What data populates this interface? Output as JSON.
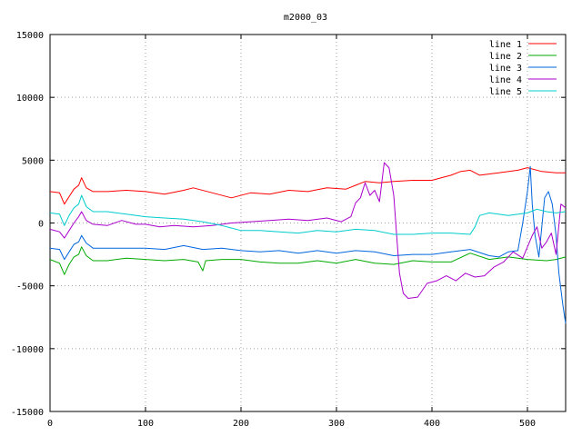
{
  "chart_data": {
    "type": "line",
    "title": "m2000_03",
    "xlabel": "",
    "ylabel": "",
    "xlim": [
      0,
      540
    ],
    "ylim": [
      -15000,
      15000
    ],
    "xticks": [
      0,
      100,
      200,
      300,
      400,
      500
    ],
    "yticks": [
      -15000,
      -10000,
      -5000,
      0,
      5000,
      10000,
      15000
    ],
    "grid": true,
    "legend_position": "top-right",
    "series": [
      {
        "name": "line 1",
        "color": "#ff0000",
        "points": [
          [
            0,
            2500
          ],
          [
            10,
            2400
          ],
          [
            15,
            1500
          ],
          [
            20,
            2100
          ],
          [
            25,
            2700
          ],
          [
            30,
            3000
          ],
          [
            33,
            3600
          ],
          [
            38,
            2800
          ],
          [
            45,
            2500
          ],
          [
            60,
            2500
          ],
          [
            80,
            2600
          ],
          [
            100,
            2500
          ],
          [
            120,
            2300
          ],
          [
            140,
            2600
          ],
          [
            150,
            2800
          ],
          [
            170,
            2400
          ],
          [
            190,
            2000
          ],
          [
            210,
            2400
          ],
          [
            230,
            2300
          ],
          [
            250,
            2600
          ],
          [
            270,
            2500
          ],
          [
            290,
            2800
          ],
          [
            310,
            2700
          ],
          [
            320,
            3000
          ],
          [
            330,
            3300
          ],
          [
            345,
            3200
          ],
          [
            360,
            3300
          ],
          [
            380,
            3400
          ],
          [
            400,
            3400
          ],
          [
            420,
            3800
          ],
          [
            430,
            4100
          ],
          [
            440,
            4200
          ],
          [
            450,
            3800
          ],
          [
            470,
            4000
          ],
          [
            490,
            4200
          ],
          [
            500,
            4400
          ],
          [
            515,
            4100
          ],
          [
            530,
            4000
          ],
          [
            540,
            4000
          ]
        ]
      },
      {
        "name": "line 2",
        "color": "#00aa00",
        "points": [
          [
            0,
            -2900
          ],
          [
            10,
            -3200
          ],
          [
            15,
            -4100
          ],
          [
            20,
            -3300
          ],
          [
            25,
            -2700
          ],
          [
            30,
            -2500
          ],
          [
            33,
            -1900
          ],
          [
            38,
            -2600
          ],
          [
            45,
            -3000
          ],
          [
            60,
            -3000
          ],
          [
            80,
            -2800
          ],
          [
            100,
            -2900
          ],
          [
            120,
            -3000
          ],
          [
            140,
            -2900
          ],
          [
            155,
            -3100
          ],
          [
            160,
            -3800
          ],
          [
            163,
            -3000
          ],
          [
            180,
            -2900
          ],
          [
            200,
            -2900
          ],
          [
            220,
            -3100
          ],
          [
            240,
            -3200
          ],
          [
            260,
            -3200
          ],
          [
            280,
            -3000
          ],
          [
            300,
            -3200
          ],
          [
            320,
            -2900
          ],
          [
            340,
            -3200
          ],
          [
            360,
            -3300
          ],
          [
            380,
            -3000
          ],
          [
            400,
            -3100
          ],
          [
            420,
            -3100
          ],
          [
            440,
            -2400
          ],
          [
            460,
            -2900
          ],
          [
            480,
            -2700
          ],
          [
            500,
            -2900
          ],
          [
            520,
            -3000
          ],
          [
            530,
            -2900
          ],
          [
            540,
            -2700
          ]
        ]
      },
      {
        "name": "line 3",
        "color": "#0066dd",
        "points": [
          [
            0,
            -2000
          ],
          [
            10,
            -2100
          ],
          [
            15,
            -2900
          ],
          [
            20,
            -2300
          ],
          [
            25,
            -1700
          ],
          [
            30,
            -1500
          ],
          [
            33,
            -1000
          ],
          [
            38,
            -1600
          ],
          [
            45,
            -2000
          ],
          [
            60,
            -2000
          ],
          [
            80,
            -2000
          ],
          [
            100,
            -2000
          ],
          [
            120,
            -2100
          ],
          [
            140,
            -1800
          ],
          [
            160,
            -2100
          ],
          [
            180,
            -2000
          ],
          [
            200,
            -2200
          ],
          [
            220,
            -2300
          ],
          [
            240,
            -2200
          ],
          [
            260,
            -2400
          ],
          [
            280,
            -2200
          ],
          [
            300,
            -2400
          ],
          [
            320,
            -2200
          ],
          [
            340,
            -2300
          ],
          [
            360,
            -2600
          ],
          [
            380,
            -2500
          ],
          [
            400,
            -2500
          ],
          [
            420,
            -2300
          ],
          [
            440,
            -2100
          ],
          [
            460,
            -2600
          ],
          [
            470,
            -2700
          ],
          [
            480,
            -2300
          ],
          [
            490,
            -2200
          ],
          [
            495,
            0
          ],
          [
            500,
            2500
          ],
          [
            503,
            4500
          ],
          [
            505,
            1500
          ],
          [
            508,
            -1000
          ],
          [
            512,
            -2700
          ],
          [
            518,
            2000
          ],
          [
            522,
            2500
          ],
          [
            526,
            1500
          ],
          [
            530,
            -1000
          ],
          [
            533,
            -4000
          ],
          [
            537,
            -6500
          ],
          [
            540,
            -8000
          ]
        ]
      },
      {
        "name": "line 4",
        "color": "#aa00cc",
        "points": [
          [
            0,
            -500
          ],
          [
            10,
            -700
          ],
          [
            15,
            -1200
          ],
          [
            20,
            -600
          ],
          [
            25,
            0
          ],
          [
            30,
            500
          ],
          [
            33,
            900
          ],
          [
            38,
            200
          ],
          [
            45,
            -100
          ],
          [
            60,
            -200
          ],
          [
            75,
            200
          ],
          [
            90,
            -100
          ],
          [
            100,
            -100
          ],
          [
            115,
            -300
          ],
          [
            130,
            -200
          ],
          [
            150,
            -300
          ],
          [
            170,
            -200
          ],
          [
            190,
            0
          ],
          [
            210,
            100
          ],
          [
            230,
            200
          ],
          [
            250,
            300
          ],
          [
            270,
            200
          ],
          [
            290,
            400
          ],
          [
            305,
            100
          ],
          [
            315,
            500
          ],
          [
            320,
            1600
          ],
          [
            325,
            2000
          ],
          [
            330,
            3200
          ],
          [
            335,
            2200
          ],
          [
            340,
            2600
          ],
          [
            345,
            1700
          ],
          [
            350,
            4800
          ],
          [
            355,
            4400
          ],
          [
            360,
            2200
          ],
          [
            363,
            -1000
          ],
          [
            366,
            -4000
          ],
          [
            370,
            -5600
          ],
          [
            375,
            -6000
          ],
          [
            385,
            -5900
          ],
          [
            395,
            -4800
          ],
          [
            405,
            -4600
          ],
          [
            415,
            -4200
          ],
          [
            425,
            -4600
          ],
          [
            435,
            -4000
          ],
          [
            445,
            -4300
          ],
          [
            455,
            -4200
          ],
          [
            465,
            -3500
          ],
          [
            475,
            -3100
          ],
          [
            485,
            -2300
          ],
          [
            495,
            -2800
          ],
          [
            505,
            -1000
          ],
          [
            510,
            -300
          ],
          [
            515,
            -2000
          ],
          [
            520,
            -1500
          ],
          [
            525,
            -800
          ],
          [
            530,
            -2500
          ],
          [
            535,
            1500
          ],
          [
            540,
            1200
          ]
        ]
      },
      {
        "name": "line 5",
        "color": "#00cccc",
        "points": [
          [
            0,
            800
          ],
          [
            10,
            700
          ],
          [
            15,
            -200
          ],
          [
            20,
            600
          ],
          [
            25,
            1200
          ],
          [
            30,
            1500
          ],
          [
            33,
            2200
          ],
          [
            38,
            1300
          ],
          [
            45,
            900
          ],
          [
            60,
            900
          ],
          [
            80,
            700
          ],
          [
            100,
            500
          ],
          [
            120,
            400
          ],
          [
            140,
            300
          ],
          [
            160,
            100
          ],
          [
            180,
            -200
          ],
          [
            200,
            -600
          ],
          [
            220,
            -600
          ],
          [
            240,
            -700
          ],
          [
            260,
            -800
          ],
          [
            280,
            -600
          ],
          [
            300,
            -700
          ],
          [
            320,
            -500
          ],
          [
            340,
            -600
          ],
          [
            360,
            -900
          ],
          [
            380,
            -900
          ],
          [
            400,
            -800
          ],
          [
            420,
            -800
          ],
          [
            440,
            -900
          ],
          [
            445,
            -300
          ],
          [
            450,
            600
          ],
          [
            460,
            800
          ],
          [
            480,
            600
          ],
          [
            500,
            800
          ],
          [
            510,
            1100
          ],
          [
            520,
            900
          ],
          [
            530,
            800
          ],
          [
            540,
            900
          ]
        ]
      }
    ]
  }
}
